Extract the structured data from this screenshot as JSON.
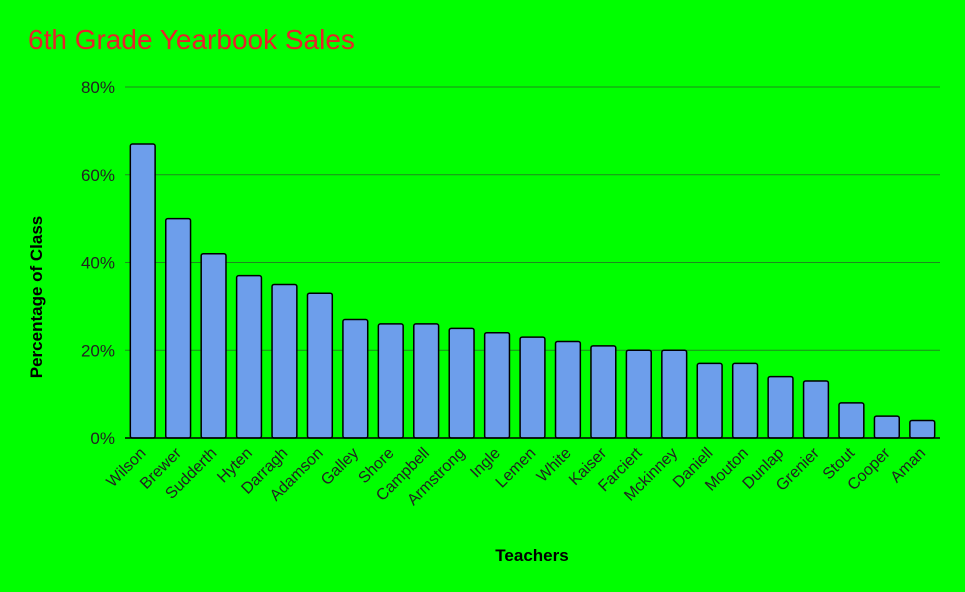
{
  "chart_data": {
    "type": "bar",
    "title": "6th Grade Yearbook Sales",
    "xlabel": "Teachers",
    "ylabel": "Percentage of Class",
    "categories": [
      "Wilson",
      "Brewer",
      "Sudderth",
      "Hyten",
      "Darragh",
      "Adamson",
      "Galley",
      "Shore",
      "Campbell",
      "Armstrong",
      "Ingle",
      "Lemen",
      "White",
      "Kaiser",
      "Farciert",
      "Mckinney",
      "Daniell",
      "Mouton",
      "Dunlap",
      "Grenier",
      "Stout",
      "Cooper",
      "Aman"
    ],
    "values": [
      67,
      50,
      42,
      37,
      35,
      33,
      27,
      26,
      26,
      25,
      24,
      23,
      22,
      21,
      20,
      20,
      17,
      17,
      14,
      13,
      8,
      5,
      4
    ],
    "ylim": [
      0,
      80
    ],
    "yticks": [
      0,
      20,
      40,
      60,
      80
    ],
    "ytick_suffix": "%",
    "grid": true,
    "legend": "none",
    "colors": {
      "background": "#00ff00",
      "bar": "#6d9eeb",
      "title": "#e8222a",
      "grid": "#1e8a1e"
    }
  }
}
